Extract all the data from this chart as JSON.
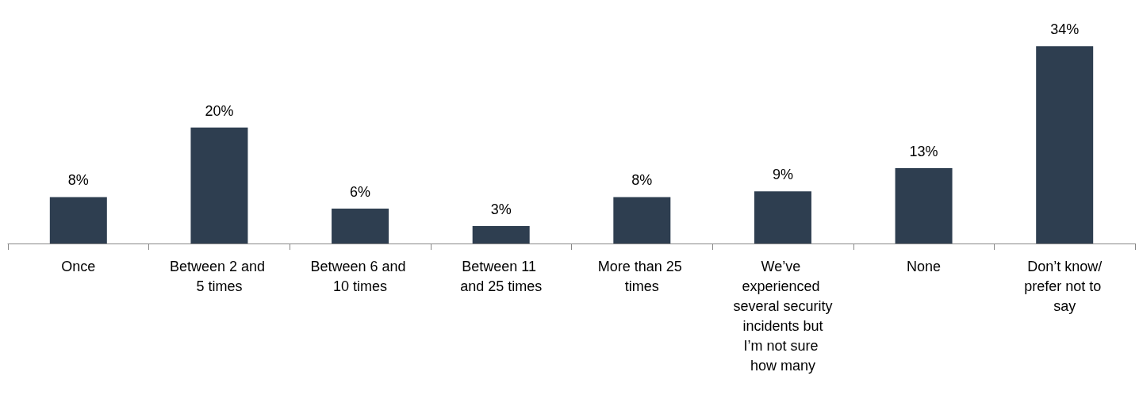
{
  "chart_data": {
    "type": "bar",
    "categories": [
      "Once",
      "Between 2 and 5 times",
      "Between 6 and 10 times",
      "Between 11 and 25 times",
      "More than 25 times",
      "We’ve experienced several security incidents but I’m not sure how many",
      "None",
      "Don’t know/prefer not to say"
    ],
    "values": [
      8,
      20,
      6,
      3,
      8,
      9,
      13,
      34
    ],
    "value_labels": [
      "8%",
      "20%",
      "6%",
      "3%",
      "8%",
      "9%",
      "13%",
      "34%"
    ],
    "color": "#2e3e50"
  }
}
